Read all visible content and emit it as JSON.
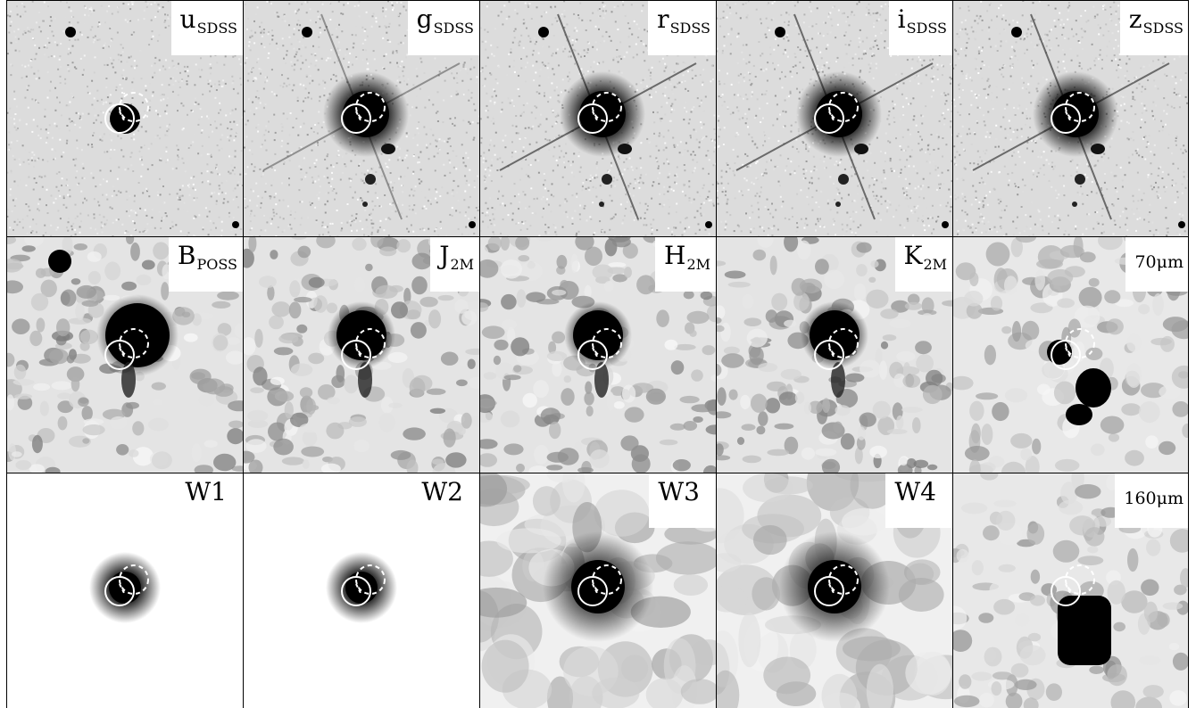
{
  "figure": {
    "panels": [
      {
        "id": "u",
        "label_main": "u",
        "label_sub": "SDSS",
        "style": "sdss"
      },
      {
        "id": "g",
        "label_main": "g",
        "label_sub": "SDSS",
        "style": "sdss"
      },
      {
        "id": "r",
        "label_main": "r",
        "label_sub": "SDSS",
        "style": "sdss"
      },
      {
        "id": "i",
        "label_main": "i",
        "label_sub": "SDSS",
        "style": "sdss"
      },
      {
        "id": "z",
        "label_main": "z",
        "label_sub": "SDSS",
        "style": "sdss"
      },
      {
        "id": "B",
        "label_main": "B",
        "label_sub": "POSS",
        "style": "blotchy"
      },
      {
        "id": "J",
        "label_main": "J",
        "label_sub": "2M",
        "style": "blotchy"
      },
      {
        "id": "H",
        "label_main": "H",
        "label_sub": "2M",
        "style": "blotchy"
      },
      {
        "id": "K",
        "label_main": "K",
        "label_sub": "2M",
        "style": "blotchy"
      },
      {
        "id": "70um",
        "label_main": "70μm",
        "label_sub": "",
        "style": "far-ir"
      },
      {
        "id": "W1",
        "label_main": "W1",
        "label_sub": "",
        "style": "smooth"
      },
      {
        "id": "W2",
        "label_main": "W2",
        "label_sub": "",
        "style": "smooth"
      },
      {
        "id": "W3",
        "label_main": "W3",
        "label_sub": "",
        "style": "wise-blotchy"
      },
      {
        "id": "W4",
        "label_main": "W4",
        "label_sub": "",
        "style": "wise-blotchy"
      },
      {
        "id": "160um",
        "label_main": "160μm",
        "label_sub": "",
        "style": "far-ir"
      }
    ],
    "colors": {
      "background": "#ffffff",
      "source": "#000000",
      "marker": "#ffffff",
      "border": "#000000"
    }
  }
}
